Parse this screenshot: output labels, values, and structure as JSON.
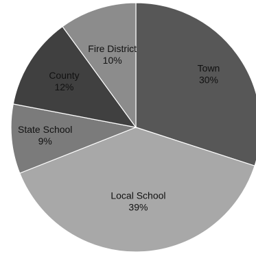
{
  "chart_data": {
    "type": "pie",
    "slices": [
      {
        "label": "Town",
        "value": 30,
        "value_text": "30%",
        "color": "#575757"
      },
      {
        "label": "Local School",
        "value": 39,
        "value_text": "39%",
        "color": "#a8a8a8"
      },
      {
        "label": "State School",
        "value": 9,
        "value_text": "9%",
        "color": "#7b7b7b"
      },
      {
        "label": "County",
        "value": 12,
        "value_text": "12%",
        "color": "#404040"
      },
      {
        "label": "Fire District",
        "value": 10,
        "value_text": "10%",
        "color": "#8c8c8c"
      }
    ],
    "legend": "none"
  }
}
